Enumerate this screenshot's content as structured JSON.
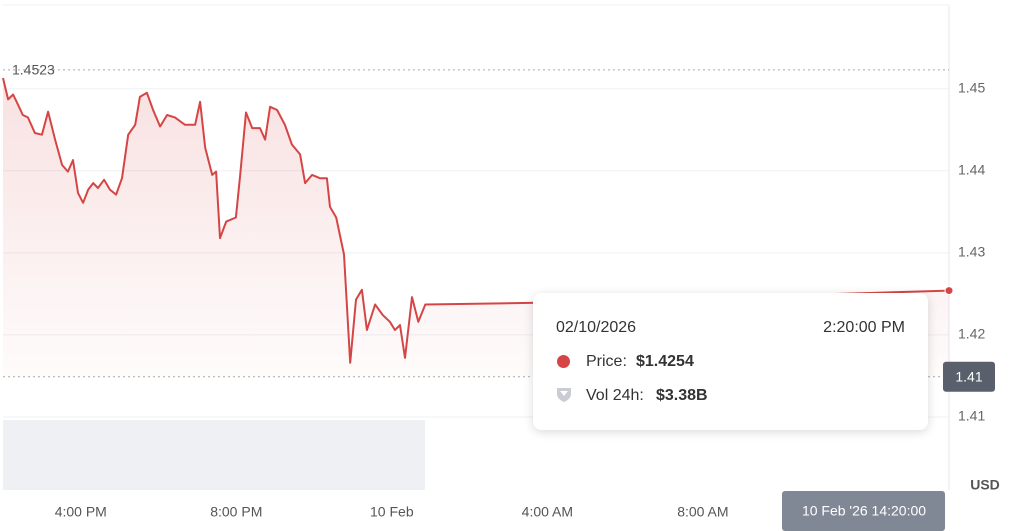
{
  "chart_data": {
    "type": "line",
    "color": "#d64545",
    "y_label": "USD",
    "x": [
      14.0,
      14.13,
      14.26,
      14.39,
      14.51,
      14.64,
      14.82,
      15.0,
      15.16,
      15.34,
      15.52,
      15.67,
      15.8,
      15.93,
      16.06,
      16.19,
      16.32,
      16.44,
      16.6,
      16.75,
      16.91,
      17.06,
      17.22,
      17.4,
      17.52,
      17.7,
      17.86,
      18.04,
      18.22,
      18.42,
      18.68,
      18.94,
      19.07,
      19.2,
      19.38,
      19.48,
      19.58,
      19.74,
      19.99,
      20.1,
      20.25,
      20.41,
      20.61,
      20.74,
      20.87,
      21.05,
      21.25,
      21.43,
      21.64,
      21.77,
      21.95,
      22.15,
      22.33,
      22.41,
      22.57,
      22.77,
      22.93,
      23.08,
      23.23,
      23.36,
      23.57,
      23.77,
      23.95,
      24.08,
      24.21,
      24.34,
      24.52,
      24.68,
      24.86,
      27.56,
      36.3,
      38.33
    ],
    "values": [
      1.4513,
      1.4487,
      1.4493,
      1.448,
      1.4468,
      1.4465,
      1.4446,
      1.4444,
      1.4472,
      1.4438,
      1.4407,
      1.4399,
      1.4413,
      1.4373,
      1.4361,
      1.4377,
      1.4385,
      1.4379,
      1.4389,
      1.4377,
      1.4371,
      1.4391,
      1.4444,
      1.4456,
      1.449,
      1.4495,
      1.4474,
      1.4454,
      1.4468,
      1.4465,
      1.4456,
      1.4456,
      1.4484,
      1.4428,
      1.4395,
      1.4399,
      1.4318,
      1.4338,
      1.4343,
      1.4395,
      1.4471,
      1.4452,
      1.4452,
      1.4438,
      1.4478,
      1.4474,
      1.4456,
      1.4432,
      1.442,
      1.4385,
      1.4395,
      1.4391,
      1.4391,
      1.4356,
      1.4343,
      1.4298,
      1.4166,
      1.4243,
      1.4255,
      1.4206,
      1.4237,
      1.4224,
      1.4216,
      1.4206,
      1.4212,
      1.4172,
      1.4246,
      1.4216,
      1.4237,
      1.4239,
      1.4251,
      1.4254
    ],
    "xlim": [
      14,
      38.33
    ],
    "xticks": [
      {
        "value": 16,
        "label": "4:00 PM"
      },
      {
        "value": 20,
        "label": "8:00 PM"
      },
      {
        "value": 24,
        "label": "10 Feb"
      },
      {
        "value": 28,
        "label": "4:00 AM"
      },
      {
        "value": 32,
        "label": "8:00 AM"
      }
    ],
    "ylim": [
      1.4011,
      1.4602
    ],
    "yticks": [
      1.41,
      1.42,
      1.43,
      1.44,
      1.45
    ],
    "grid": true,
    "high": 1.4523,
    "low": {
      "value": 1.4149,
      "label": "1.41"
    }
  },
  "tooltip": {
    "date": "02/10/2026",
    "time": "2:20:00 PM",
    "price_label": "Price:",
    "price": "$1.4254",
    "vol_label": "Vol 24h:",
    "vol": "$3.38B",
    "crosshair_label": "10 Feb '26 14:20:00"
  }
}
